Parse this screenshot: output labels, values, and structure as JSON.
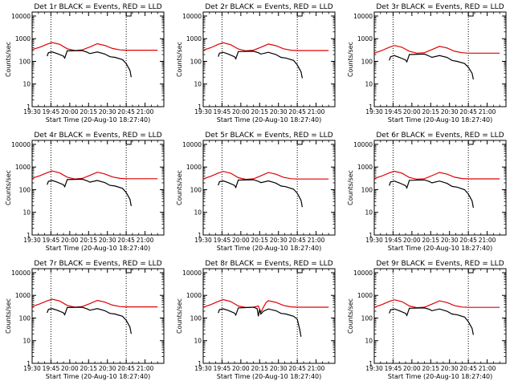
{
  "chart_data": {
    "type": "line",
    "rows": 3,
    "cols": 3,
    "ylabel": "Counts/sec",
    "xlabel": "Start Time (20-Aug-10 18:27:40)",
    "x_ticks": [
      "19:30",
      "19:45",
      "20:00",
      "20:15",
      "20:30",
      "20:45",
      "21:00"
    ],
    "x_tick_minutes": [
      0,
      15,
      30,
      45,
      60,
      75,
      90
    ],
    "xlim_minutes": [
      0,
      105
    ],
    "y_ticks": [
      "1",
      "10",
      "100",
      "1000",
      "10000"
    ],
    "y_tick_values": [
      1,
      10,
      100,
      1000,
      10000
    ],
    "ylim": [
      1,
      15000
    ],
    "ylog": true,
    "vlines_minutes": [
      15,
      75
    ],
    "series_names": [
      "BLACK = Events",
      "RED = LLD"
    ],
    "colors": {
      "events": "#000000",
      "lld": "#e00000"
    },
    "panels": [
      {
        "title": "Det 1r BLACK = Events, RED = LLD",
        "lld": {
          "x": [
            0,
            6,
            12,
            16,
            22,
            28,
            34,
            40,
            46,
            52,
            58,
            64,
            70,
            75,
            80,
            90,
            100
          ],
          "y": [
            330,
            420,
            570,
            680,
            560,
            360,
            300,
            320,
            430,
            600,
            500,
            370,
            320,
            310,
            310,
            310,
            310
          ]
        },
        "events": {
          "x": [
            12,
            13,
            16,
            20,
            25,
            26,
            28,
            40,
            44,
            46,
            52,
            58,
            62,
            66,
            72,
            75,
            78,
            79
          ],
          "y": [
            170,
            240,
            260,
            220,
            170,
            140,
            290,
            300,
            250,
            220,
            260,
            210,
            160,
            150,
            120,
            80,
            40,
            20
          ]
        }
      },
      {
        "title": "Det 2r BLACK = Events, RED = LLD",
        "lld": {
          "x": [
            0,
            6,
            12,
            16,
            22,
            28,
            34,
            40,
            46,
            52,
            58,
            64,
            70,
            75,
            80,
            90,
            100
          ],
          "y": [
            310,
            400,
            560,
            660,
            540,
            350,
            290,
            310,
            420,
            580,
            490,
            360,
            310,
            300,
            300,
            300,
            300
          ]
        },
        "events": {
          "x": [
            12,
            13,
            16,
            20,
            25,
            26,
            28,
            40,
            44,
            46,
            52,
            58,
            62,
            66,
            72,
            75,
            78,
            79
          ],
          "y": [
            160,
            230,
            250,
            210,
            160,
            130,
            270,
            280,
            240,
            210,
            250,
            200,
            150,
            140,
            110,
            70,
            35,
            18
          ]
        }
      },
      {
        "title": "Det 3r BLACK = Events, RED = LLD",
        "lld": {
          "x": [
            0,
            6,
            12,
            16,
            22,
            28,
            34,
            40,
            46,
            52,
            58,
            64,
            70,
            75,
            80,
            90,
            100
          ],
          "y": [
            230,
            300,
            420,
            500,
            420,
            280,
            230,
            240,
            330,
            460,
            390,
            280,
            240,
            230,
            230,
            230,
            230
          ]
        },
        "events": {
          "x": [
            12,
            13,
            16,
            20,
            25,
            26,
            28,
            40,
            44,
            46,
            52,
            58,
            62,
            66,
            72,
            75,
            78,
            79
          ],
          "y": [
            110,
            160,
            180,
            150,
            115,
            95,
            200,
            210,
            170,
            150,
            180,
            150,
            110,
            100,
            80,
            55,
            30,
            16
          ]
        }
      },
      {
        "title": "Det 4r BLACK = Events, RED = LLD",
        "lld": {
          "x": [
            0,
            6,
            12,
            16,
            22,
            28,
            34,
            40,
            46,
            52,
            58,
            64,
            70,
            75,
            80,
            90,
            100
          ],
          "y": [
            320,
            410,
            560,
            670,
            550,
            355,
            295,
            315,
            425,
            590,
            495,
            365,
            315,
            305,
            305,
            305,
            305
          ]
        },
        "events": {
          "x": [
            12,
            13,
            16,
            20,
            25,
            26,
            28,
            40,
            44,
            46,
            52,
            58,
            62,
            66,
            72,
            75,
            78,
            79
          ],
          "y": [
            165,
            235,
            255,
            215,
            165,
            135,
            280,
            290,
            245,
            215,
            255,
            205,
            155,
            145,
            115,
            75,
            38,
            19
          ]
        }
      },
      {
        "title": "Det 5r BLACK = Events, RED = LLD",
        "lld": {
          "x": [
            0,
            6,
            12,
            16,
            22,
            28,
            34,
            40,
            46,
            52,
            58,
            64,
            70,
            75,
            80,
            90,
            100
          ],
          "y": [
            300,
            390,
            540,
            640,
            530,
            340,
            285,
            300,
            410,
            570,
            480,
            350,
            305,
            295,
            295,
            295,
            295
          ]
        },
        "events": {
          "x": [
            12,
            13,
            16,
            20,
            25,
            26,
            28,
            40,
            44,
            46,
            52,
            58,
            62,
            66,
            72,
            75,
            78,
            79
          ],
          "y": [
            155,
            225,
            245,
            205,
            155,
            125,
            265,
            275,
            235,
            205,
            245,
            195,
            145,
            135,
            105,
            70,
            34,
            17
          ]
        }
      },
      {
        "title": "Det 6r BLACK = Events, RED = LLD",
        "lld": {
          "x": [
            0,
            6,
            12,
            16,
            22,
            28,
            34,
            40,
            46,
            52,
            58,
            64,
            70,
            75,
            80,
            90,
            100
          ],
          "y": [
            310,
            400,
            550,
            650,
            540,
            345,
            290,
            305,
            415,
            575,
            485,
            355,
            310,
            300,
            300,
            300,
            300
          ]
        },
        "events": {
          "x": [
            12,
            13,
            16,
            20,
            25,
            26,
            28,
            40,
            44,
            46,
            52,
            58,
            62,
            66,
            72,
            75,
            78,
            79
          ],
          "y": [
            150,
            220,
            240,
            200,
            150,
            120,
            260,
            270,
            230,
            200,
            240,
            190,
            140,
            130,
            100,
            65,
            32,
            16
          ]
        }
      },
      {
        "title": "Det 7r BLACK = Events, RED = LLD",
        "lld": {
          "x": [
            0,
            6,
            12,
            16,
            22,
            28,
            34,
            40,
            46,
            52,
            58,
            64,
            70,
            75,
            80,
            90,
            100
          ],
          "y": [
            320,
            420,
            570,
            680,
            560,
            360,
            300,
            320,
            430,
            600,
            500,
            370,
            320,
            310,
            310,
            310,
            310
          ]
        },
        "events": {
          "x": [
            12,
            13,
            16,
            20,
            25,
            26,
            28,
            40,
            44,
            46,
            52,
            58,
            62,
            66,
            72,
            75,
            78,
            79
          ],
          "y": [
            170,
            240,
            260,
            220,
            170,
            140,
            290,
            300,
            250,
            220,
            260,
            210,
            160,
            150,
            120,
            80,
            40,
            20
          ]
        }
      },
      {
        "title": "Det 8r BLACK = Events, RED = LLD",
        "lld": {
          "x": [
            0,
            6,
            12,
            16,
            22,
            28,
            34,
            40,
            44,
            46,
            48,
            50,
            52,
            58,
            64,
            70,
            75,
            80,
            90,
            100
          ],
          "y": [
            300,
            390,
            540,
            650,
            530,
            340,
            290,
            300,
            340,
            180,
            300,
            470,
            580,
            490,
            360,
            310,
            300,
            300,
            300,
            300
          ]
        },
        "events": {
          "x": [
            12,
            13,
            16,
            20,
            25,
            26,
            28,
            40,
            43,
            44,
            45,
            46,
            48,
            52,
            58,
            62,
            66,
            72,
            75,
            77,
            78
          ],
          "y": [
            165,
            235,
            255,
            215,
            165,
            135,
            280,
            300,
            260,
            120,
            240,
            150,
            200,
            250,
            210,
            160,
            150,
            120,
            90,
            30,
            15
          ]
        }
      },
      {
        "title": "Det 9r BLACK = Events, RED = LLD",
        "lld": {
          "x": [
            0,
            6,
            12,
            16,
            22,
            28,
            34,
            40,
            46,
            52,
            58,
            64,
            70,
            75,
            80,
            90,
            100
          ],
          "y": [
            300,
            390,
            540,
            640,
            530,
            340,
            285,
            300,
            410,
            570,
            480,
            350,
            305,
            295,
            295,
            295,
            295
          ]
        },
        "events": {
          "x": [
            12,
            13,
            16,
            20,
            25,
            26,
            28,
            40,
            44,
            46,
            52,
            58,
            62,
            66,
            72,
            75,
            78,
            79
          ],
          "y": [
            160,
            230,
            250,
            210,
            160,
            130,
            270,
            280,
            240,
            210,
            250,
            200,
            150,
            140,
            110,
            70,
            35,
            18
          ]
        }
      }
    ]
  }
}
